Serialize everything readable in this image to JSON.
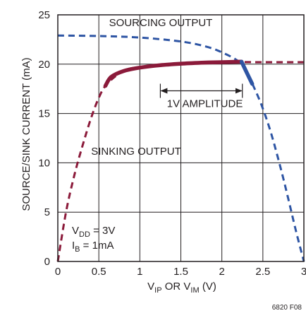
{
  "chart_data": {
    "type": "line",
    "title": "",
    "xlabel": {
      "main": "V",
      "sub1": "IP",
      "mid": " OR V",
      "sub2": "IM",
      "tail": " (V)"
    },
    "ylabel": "SOURCE/SINK CURRENT (mA)",
    "xlim": [
      0,
      3
    ],
    "ylim": [
      0,
      25
    ],
    "xticks": [
      0,
      0.5,
      1,
      1.5,
      2,
      2.5,
      3
    ],
    "xtick_labels": [
      "0",
      "0.5",
      "1",
      "1.5",
      "2",
      "2.5",
      "3"
    ],
    "yticks": [
      0,
      5,
      10,
      15,
      20,
      25
    ],
    "ytick_labels": [
      "0",
      "5",
      "10",
      "15",
      "20",
      "25"
    ],
    "grid": true,
    "series": [
      {
        "name": "SOURCING OUTPUT",
        "style": "dashed",
        "color": "#2e55a4",
        "x": [
          0,
          0.5,
          1.0,
          1.5,
          1.8,
          2.0,
          2.2,
          2.3,
          2.4,
          2.5,
          2.6,
          2.7,
          2.8,
          2.9,
          3.0
        ],
        "y": [
          22.9,
          22.85,
          22.7,
          22.3,
          21.8,
          21.2,
          20.3,
          19.2,
          17.5,
          15.5,
          13.0,
          10.0,
          6.7,
          3.2,
          0
        ]
      },
      {
        "name": "SINKING OUTPUT",
        "style": "dashed",
        "color": "#8b1a3a",
        "x": [
          0,
          0.1,
          0.2,
          0.3,
          0.4,
          0.5,
          0.6,
          0.8,
          1.0,
          1.5,
          2.0,
          2.5,
          3.0
        ],
        "y": [
          0,
          5.0,
          8.7,
          11.7,
          14.4,
          16.6,
          18.0,
          19.3,
          19.7,
          20.0,
          20.2,
          20.2,
          20.2
        ]
      },
      {
        "name": "",
        "style": "solid",
        "color": "#8b1a3a",
        "x": [
          0.58,
          0.65,
          0.8,
          1.0,
          1.25,
          1.5,
          1.75,
          2.0,
          2.24
        ],
        "y": [
          17.8,
          18.7,
          19.3,
          19.65,
          19.9,
          20.05,
          20.15,
          20.2,
          20.25
        ]
      },
      {
        "name": "",
        "style": "solid",
        "color": "#2e55a4",
        "x": [
          2.24,
          2.3,
          2.37
        ],
        "y": [
          20.25,
          19.2,
          18.0
        ]
      }
    ],
    "annotations": {
      "amplitude_label": "1V AMPLITUDE",
      "amplitude_range": [
        1.25,
        2.25
      ],
      "amplitude_y": 17.3,
      "vdd": {
        "main": "V",
        "sub": "DD",
        "tail": " = 3V"
      },
      "ib": {
        "main": "I",
        "sub": "B",
        "tail": " = 1mA"
      }
    },
    "figure_id": "6820 F08"
  }
}
